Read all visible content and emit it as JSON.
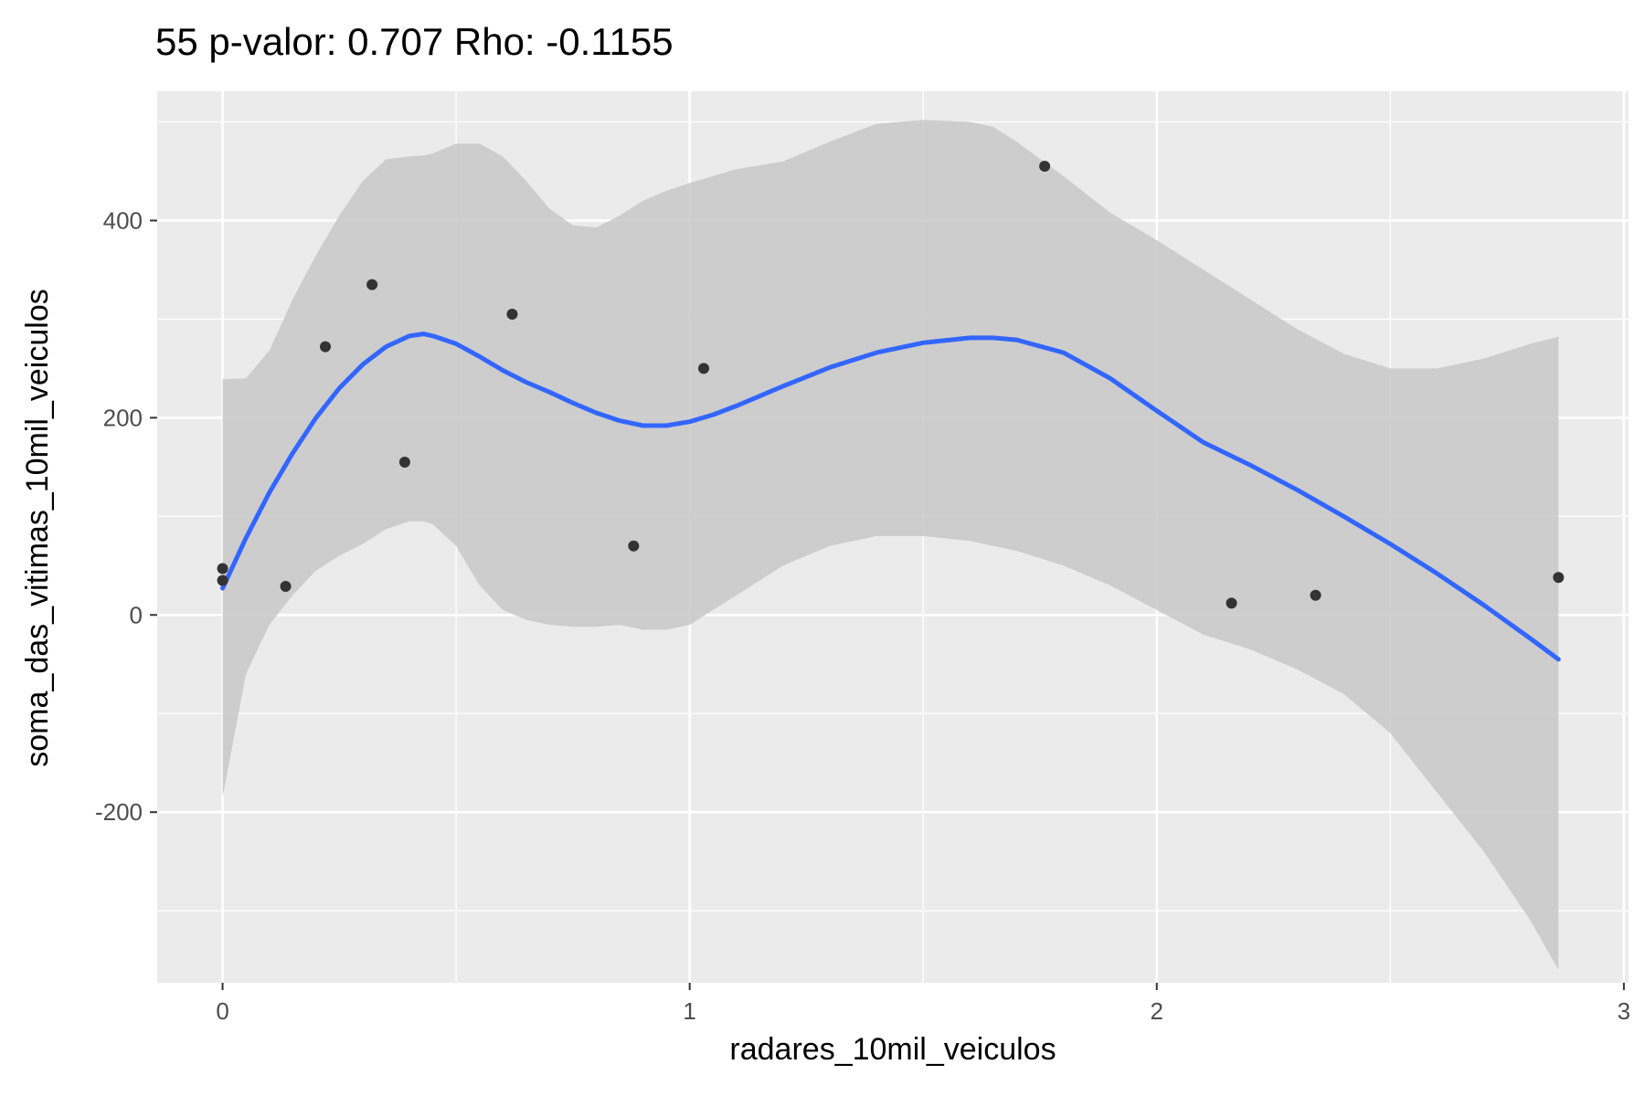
{
  "chart_data": {
    "type": "scatter",
    "title": "55 p-valor: 0.707 Rho: -0.1155",
    "xlabel": "radares_10mil_veiculos",
    "ylabel": "soma_das_vitimas_10mil_veiculos",
    "xlim": [
      -0.14,
      3.01
    ],
    "ylim": [
      -373,
      531
    ],
    "x_ticks": [
      0,
      1,
      2,
      3
    ],
    "x_tick_labels": [
      "0",
      "1",
      "2",
      "3"
    ],
    "y_ticks": [
      -200,
      0,
      200,
      400
    ],
    "y_tick_labels": [
      "-200",
      "0",
      "200",
      "400"
    ],
    "grid": true,
    "legend": "none",
    "colors": {
      "panel": "#ebebeb",
      "grid": "#ffffff",
      "points": "#333333",
      "smooth_line": "#3366ff",
      "confidence_band": "#c8c8c8"
    },
    "points": [
      {
        "x": 0.0,
        "y": 47
      },
      {
        "x": 0.0,
        "y": 35
      },
      {
        "x": 0.135,
        "y": 29
      },
      {
        "x": 0.22,
        "y": 272
      },
      {
        "x": 0.32,
        "y": 335
      },
      {
        "x": 0.39,
        "y": 155
      },
      {
        "x": 0.62,
        "y": 305
      },
      {
        "x": 0.88,
        "y": 70
      },
      {
        "x": 1.03,
        "y": 250
      },
      {
        "x": 1.76,
        "y": 455
      },
      {
        "x": 2.16,
        "y": 12
      },
      {
        "x": 2.34,
        "y": 20
      },
      {
        "x": 2.86,
        "y": 38
      }
    ],
    "smooth": {
      "x": [
        0.0,
        0.05,
        0.1,
        0.15,
        0.2,
        0.25,
        0.3,
        0.35,
        0.4,
        0.43,
        0.45,
        0.5,
        0.55,
        0.6,
        0.65,
        0.7,
        0.75,
        0.8,
        0.85,
        0.9,
        0.95,
        1.0,
        1.05,
        1.1,
        1.2,
        1.3,
        1.4,
        1.5,
        1.6,
        1.65,
        1.7,
        1.8,
        1.9,
        2.0,
        2.1,
        2.2,
        2.3,
        2.4,
        2.5,
        2.6,
        2.7,
        2.8,
        2.86
      ],
      "y": [
        27,
        78,
        124,
        164,
        200,
        230,
        254,
        272,
        283,
        285,
        283,
        275,
        262,
        248,
        236,
        226,
        215,
        205,
        197,
        192,
        192,
        196,
        203,
        212,
        232,
        251,
        266,
        276,
        281,
        281,
        279,
        266,
        240,
        207,
        175,
        152,
        127,
        100,
        72,
        42,
        10,
        -24,
        -45
      ],
      "lower": [
        -185,
        -60,
        -10,
        20,
        45,
        60,
        72,
        87,
        95,
        95,
        92,
        70,
        30,
        5,
        -5,
        -10,
        -12,
        -12,
        -10,
        -15,
        -15,
        -10,
        5,
        20,
        50,
        70,
        80,
        80,
        75,
        70,
        65,
        50,
        30,
        5,
        -20,
        -35,
        -55,
        -80,
        -120,
        -180,
        -240,
        -310,
        -360
      ],
      "upper": [
        239,
        240,
        268,
        320,
        365,
        405,
        440,
        462,
        465,
        466,
        468,
        478,
        478,
        465,
        440,
        412,
        395,
        393,
        405,
        420,
        430,
        438,
        445,
        452,
        460,
        480,
        498,
        502,
        500,
        495,
        480,
        445,
        408,
        380,
        350,
        320,
        290,
        265,
        250,
        250,
        260,
        275,
        282
      ]
    }
  }
}
